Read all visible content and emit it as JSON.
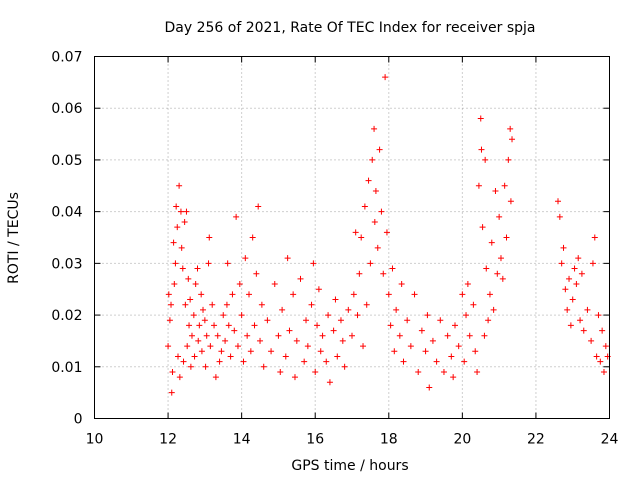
{
  "chart_data": {
    "type": "scatter",
    "title": "Day 256 of 2021, Rate Of TEC Index for receiver spja",
    "xlabel": "GPS time / hours",
    "ylabel": "ROTI / TECUs",
    "xlim": [
      10,
      24
    ],
    "ylim": [
      0,
      0.07
    ],
    "x_ticks": [
      "10",
      "12",
      "14",
      "16",
      "18",
      "20",
      "22",
      "24"
    ],
    "y_ticks": [
      "0",
      "0.01",
      "0.02",
      "0.03",
      "0.04",
      "0.05",
      "0.06",
      "0.07"
    ],
    "grid": true,
    "marker": "+",
    "color": "#ff0000",
    "series": [
      {
        "values": [
          [
            12.0,
            0.014
          ],
          [
            12.02,
            0.024
          ],
          [
            12.05,
            0.019
          ],
          [
            12.08,
            0.022
          ],
          [
            12.1,
            0.005
          ],
          [
            12.12,
            0.009
          ],
          [
            12.15,
            0.034
          ],
          [
            12.17,
            0.026
          ],
          [
            12.2,
            0.03
          ],
          [
            12.22,
            0.041
          ],
          [
            12.25,
            0.037
          ],
          [
            12.27,
            0.012
          ],
          [
            12.3,
            0.045
          ],
          [
            12.32,
            0.008
          ],
          [
            12.35,
            0.04
          ],
          [
            12.37,
            0.033
          ],
          [
            12.4,
            0.029
          ],
          [
            12.42,
            0.011
          ],
          [
            12.45,
            0.038
          ],
          [
            12.47,
            0.022
          ],
          [
            12.5,
            0.04
          ],
          [
            12.52,
            0.014
          ],
          [
            12.55,
            0.027
          ],
          [
            12.57,
            0.018
          ],
          [
            12.6,
            0.023
          ],
          [
            12.62,
            0.01
          ],
          [
            12.65,
            0.016
          ],
          [
            12.7,
            0.02
          ],
          [
            12.72,
            0.012
          ],
          [
            12.75,
            0.026
          ],
          [
            12.8,
            0.029
          ],
          [
            12.82,
            0.015
          ],
          [
            12.85,
            0.018
          ],
          [
            12.9,
            0.024
          ],
          [
            12.92,
            0.013
          ],
          [
            12.95,
            0.021
          ],
          [
            13.0,
            0.019
          ],
          [
            13.02,
            0.01
          ],
          [
            13.05,
            0.016
          ],
          [
            13.1,
            0.03
          ],
          [
            13.12,
            0.035
          ],
          [
            13.15,
            0.014
          ],
          [
            13.2,
            0.022
          ],
          [
            13.25,
            0.018
          ],
          [
            13.3,
            0.008
          ],
          [
            13.35,
            0.016
          ],
          [
            13.4,
            0.011
          ],
          [
            13.45,
            0.013
          ],
          [
            13.5,
            0.02
          ],
          [
            13.55,
            0.015
          ],
          [
            13.6,
            0.022
          ],
          [
            13.62,
            0.03
          ],
          [
            13.65,
            0.018
          ],
          [
            13.7,
            0.012
          ],
          [
            13.75,
            0.024
          ],
          [
            13.8,
            0.017
          ],
          [
            13.85,
            0.039
          ],
          [
            13.9,
            0.014
          ],
          [
            13.95,
            0.026
          ],
          [
            14.0,
            0.02
          ],
          [
            14.05,
            0.011
          ],
          [
            14.1,
            0.031
          ],
          [
            14.15,
            0.016
          ],
          [
            14.2,
            0.024
          ],
          [
            14.25,
            0.013
          ],
          [
            14.3,
            0.035
          ],
          [
            14.35,
            0.018
          ],
          [
            14.4,
            0.028
          ],
          [
            14.45,
            0.041
          ],
          [
            14.5,
            0.015
          ],
          [
            14.55,
            0.022
          ],
          [
            14.6,
            0.01
          ],
          [
            14.7,
            0.019
          ],
          [
            14.8,
            0.013
          ],
          [
            14.9,
            0.026
          ],
          [
            15.0,
            0.016
          ],
          [
            15.05,
            0.009
          ],
          [
            15.1,
            0.021
          ],
          [
            15.2,
            0.012
          ],
          [
            15.25,
            0.031
          ],
          [
            15.3,
            0.017
          ],
          [
            15.4,
            0.024
          ],
          [
            15.45,
            0.008
          ],
          [
            15.5,
            0.015
          ],
          [
            15.6,
            0.027
          ],
          [
            15.7,
            0.011
          ],
          [
            15.75,
            0.019
          ],
          [
            15.8,
            0.014
          ],
          [
            15.9,
            0.022
          ],
          [
            15.95,
            0.03
          ],
          [
            16.0,
            0.009
          ],
          [
            16.05,
            0.018
          ],
          [
            16.1,
            0.025
          ],
          [
            16.15,
            0.013
          ],
          [
            16.2,
            0.016
          ],
          [
            16.3,
            0.011
          ],
          [
            16.35,
            0.02
          ],
          [
            16.4,
            0.007
          ],
          [
            16.5,
            0.017
          ],
          [
            16.55,
            0.023
          ],
          [
            16.6,
            0.012
          ],
          [
            16.7,
            0.019
          ],
          [
            16.75,
            0.015
          ],
          [
            16.8,
            0.01
          ],
          [
            16.9,
            0.021
          ],
          [
            17.0,
            0.016
          ],
          [
            17.05,
            0.024
          ],
          [
            17.1,
            0.036
          ],
          [
            17.15,
            0.02
          ],
          [
            17.2,
            0.028
          ],
          [
            17.25,
            0.035
          ],
          [
            17.3,
            0.014
          ],
          [
            17.35,
            0.041
          ],
          [
            17.4,
            0.022
          ],
          [
            17.45,
            0.046
          ],
          [
            17.5,
            0.03
          ],
          [
            17.55,
            0.05
          ],
          [
            17.6,
            0.056
          ],
          [
            17.62,
            0.038
          ],
          [
            17.65,
            0.044
          ],
          [
            17.7,
            0.033
          ],
          [
            17.75,
            0.052
          ],
          [
            17.8,
            0.04
          ],
          [
            17.85,
            0.028
          ],
          [
            17.9,
            0.066
          ],
          [
            17.95,
            0.036
          ],
          [
            18.0,
            0.024
          ],
          [
            18.05,
            0.018
          ],
          [
            18.1,
            0.029
          ],
          [
            18.15,
            0.013
          ],
          [
            18.2,
            0.021
          ],
          [
            18.3,
            0.016
          ],
          [
            18.35,
            0.026
          ],
          [
            18.4,
            0.011
          ],
          [
            18.5,
            0.019
          ],
          [
            18.6,
            0.014
          ],
          [
            18.7,
            0.024
          ],
          [
            18.8,
            0.009
          ],
          [
            18.9,
            0.017
          ],
          [
            19.0,
            0.013
          ],
          [
            19.05,
            0.02
          ],
          [
            19.1,
            0.006
          ],
          [
            19.2,
            0.015
          ],
          [
            19.3,
            0.011
          ],
          [
            19.4,
            0.019
          ],
          [
            19.5,
            0.009
          ],
          [
            19.6,
            0.016
          ],
          [
            19.7,
            0.012
          ],
          [
            19.75,
            0.008
          ],
          [
            19.8,
            0.018
          ],
          [
            19.9,
            0.014
          ],
          [
            20.0,
            0.024
          ],
          [
            20.05,
            0.011
          ],
          [
            20.1,
            0.02
          ],
          [
            20.15,
            0.026
          ],
          [
            20.2,
            0.016
          ],
          [
            20.3,
            0.022
          ],
          [
            20.35,
            0.013
          ],
          [
            20.4,
            0.009
          ],
          [
            20.45,
            0.045
          ],
          [
            20.5,
            0.058
          ],
          [
            20.52,
            0.052
          ],
          [
            20.55,
            0.037
          ],
          [
            20.6,
            0.016
          ],
          [
            20.62,
            0.05
          ],
          [
            20.65,
            0.029
          ],
          [
            20.7,
            0.019
          ],
          [
            20.75,
            0.024
          ],
          [
            20.8,
            0.034
          ],
          [
            20.85,
            0.021
          ],
          [
            20.9,
            0.044
          ],
          [
            20.95,
            0.028
          ],
          [
            21.0,
            0.039
          ],
          [
            21.05,
            0.031
          ],
          [
            21.1,
            0.027
          ],
          [
            21.15,
            0.045
          ],
          [
            21.2,
            0.035
          ],
          [
            21.25,
            0.05
          ],
          [
            21.3,
            0.056
          ],
          [
            21.32,
            0.042
          ],
          [
            21.35,
            0.054
          ],
          [
            22.6,
            0.042
          ],
          [
            22.65,
            0.039
          ],
          [
            22.7,
            0.03
          ],
          [
            22.75,
            0.033
          ],
          [
            22.8,
            0.025
          ],
          [
            22.85,
            0.021
          ],
          [
            22.9,
            0.027
          ],
          [
            22.95,
            0.018
          ],
          [
            23.0,
            0.023
          ],
          [
            23.05,
            0.029
          ],
          [
            23.1,
            0.026
          ],
          [
            23.15,
            0.031
          ],
          [
            23.2,
            0.019
          ],
          [
            23.25,
            0.028
          ],
          [
            23.3,
            0.017
          ],
          [
            23.4,
            0.021
          ],
          [
            23.5,
            0.015
          ],
          [
            23.55,
            0.03
          ],
          [
            23.6,
            0.035
          ],
          [
            23.65,
            0.012
          ],
          [
            23.7,
            0.02
          ],
          [
            23.75,
            0.011
          ],
          [
            23.8,
            0.017
          ],
          [
            23.85,
            0.009
          ],
          [
            23.9,
            0.014
          ],
          [
            23.95,
            0.012
          ]
        ]
      }
    ]
  }
}
